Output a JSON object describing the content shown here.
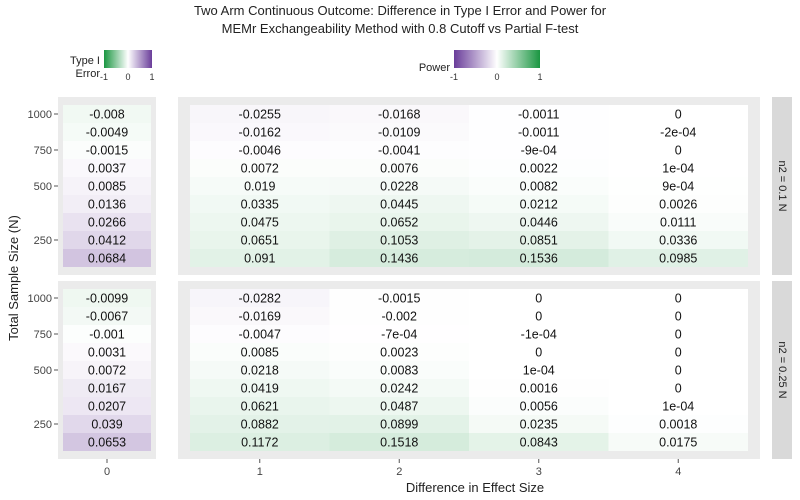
{
  "chart_data": {
    "type": "heatmap",
    "title": "Two Arm Continuous Outcome: Difference in Type I Error and Power for",
    "subtitle": "MEMr Exchangeability Method with 0.8 Cutoff vs Partial F-test",
    "xlabel": "Difference in Effect Size",
    "ylabel": "Total Sample Size (N)",
    "x_type1": [
      0
    ],
    "x_power": [
      1,
      2,
      3,
      4
    ],
    "x_ticks_type1": [
      "0"
    ],
    "x_ticks_power": [
      "1",
      "2",
      "3",
      "4"
    ],
    "y_ticks": [
      "1000",
      "750",
      "500",
      "250"
    ],
    "y_tick_values": [
      1000,
      750,
      500,
      250
    ],
    "ylim": [
      180,
      1050
    ],
    "n_rows": 9,
    "legends": [
      {
        "title": "Type I Error",
        "title_lines": [
          "Type I",
          "Error"
        ],
        "labels": [
          "-1",
          "0",
          "1"
        ],
        "low_color": "#1a9641",
        "high_color": "#6a3d9a",
        "placement": "top-left"
      },
      {
        "title": "Power",
        "labels": [
          "-1",
          "0",
          "1"
        ],
        "low_color": "#6a3d9a",
        "high_color": "#1a9641",
        "placement": "top-center"
      }
    ],
    "colors": {
      "positive_green": "#1a9641",
      "positive_purple": "#6a3d9a",
      "panel_bg": "#ebebeb",
      "strip_bg": "#d9d9d9"
    },
    "facets": [
      {
        "strip": "n2 = 0.1 N",
        "type1": [
          "-0.008",
          "-0.0049",
          "-0.0015",
          "0.0037",
          "0.0085",
          "0.0136",
          "0.0266",
          "0.0412",
          "0.0684"
        ],
        "power": [
          [
            "-0.0255",
            "-0.0162",
            "-0.0046",
            "0.0072",
            "0.019",
            "0.0335",
            "0.0475",
            "0.0651",
            "0.091"
          ],
          [
            "-0.0168",
            "-0.0109",
            "-0.0041",
            "0.0076",
            "0.0228",
            "0.0445",
            "0.0652",
            "0.1053",
            "0.1436"
          ],
          [
            "-0.0011",
            "-0.0011",
            "-9e-04",
            "0.0022",
            "0.0082",
            "0.0212",
            "0.0446",
            "0.0851",
            "0.1536"
          ],
          [
            "0",
            "-2e-04",
            "0",
            "1e-04",
            "9e-04",
            "0.0026",
            "0.0111",
            "0.0336",
            "0.0985"
          ]
        ]
      },
      {
        "strip": "n2 = 0.25 N",
        "type1": [
          "-0.0099",
          "-0.0067",
          "-0.001",
          "0.0031",
          "0.0072",
          "0.0167",
          "0.0207",
          "0.039",
          "0.0653"
        ],
        "power": [
          [
            "-0.0282",
            "-0.0169",
            "-0.0047",
            "0.0085",
            "0.0218",
            "0.0419",
            "0.0621",
            "0.0882",
            "0.1172"
          ],
          [
            "-0.0015",
            "-0.002",
            "-7e-04",
            "0.0023",
            "0.0083",
            "0.0242",
            "0.0487",
            "0.0899",
            "0.1518"
          ],
          [
            "0",
            "0",
            "-1e-04",
            "0",
            "1e-04",
            "0.0016",
            "0.0056",
            "0.0235",
            "0.0843"
          ],
          [
            "0",
            "0",
            "0",
            "0",
            "0",
            "0",
            "1e-04",
            "0.0018",
            "0.0175"
          ]
        ]
      }
    ]
  }
}
